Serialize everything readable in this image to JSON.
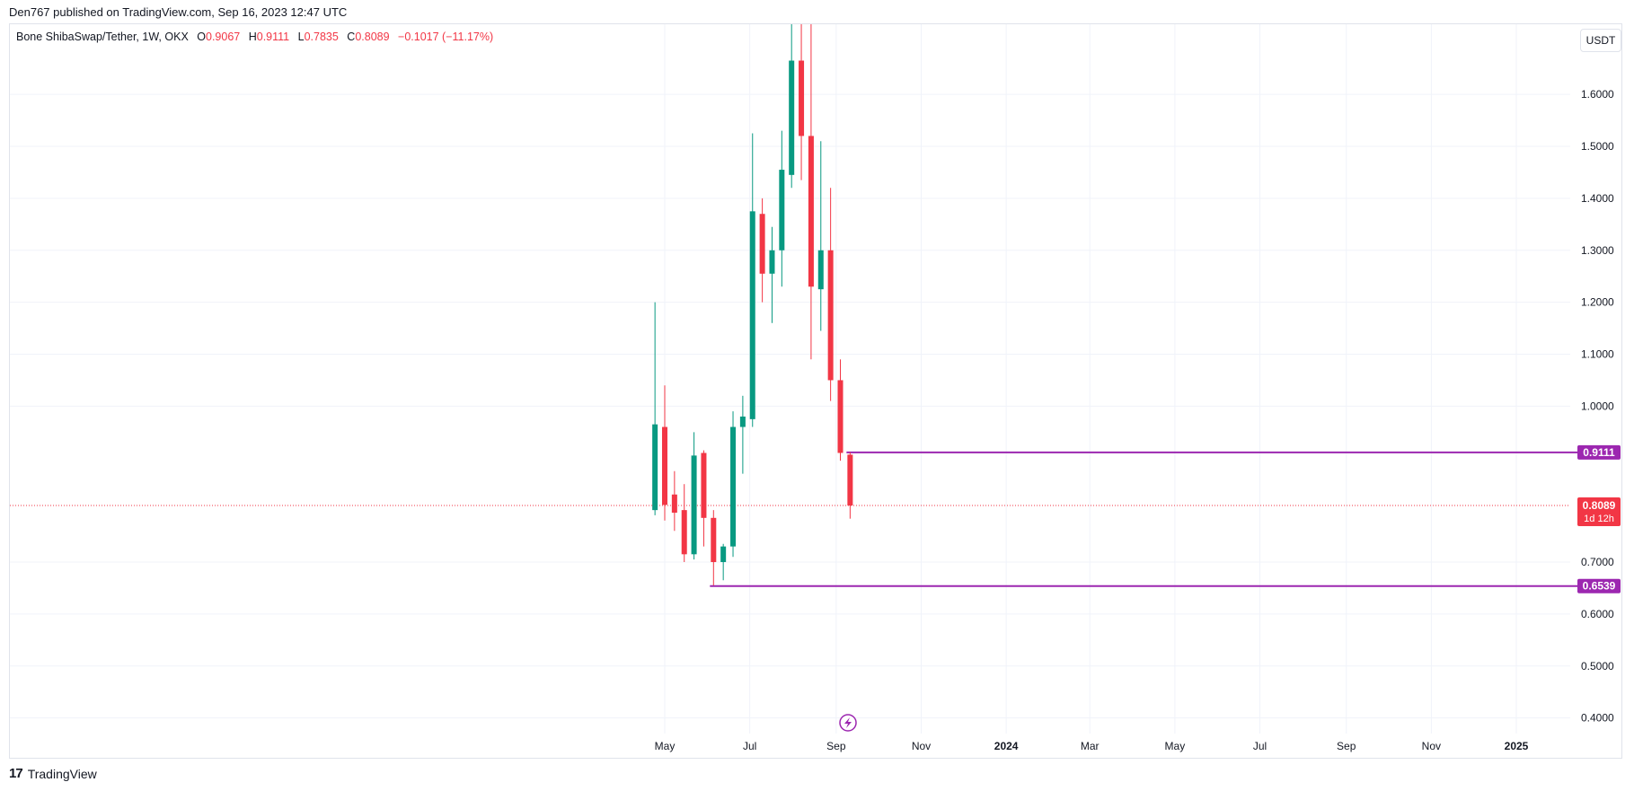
{
  "header": {
    "published": "Den767 published on TradingView.com, Sep 16, 2023 12:47 UTC"
  },
  "legend": {
    "symbol": "Bone ShibaSwap/Tether, 1W, OKX",
    "o_label": "O",
    "o": "0.9067",
    "h_label": "H",
    "h": "0.9111",
    "l_label": "L",
    "l": "0.7835",
    "c_label": "C",
    "c": "0.8089",
    "change": "−0.1017 (−11.17%)"
  },
  "currency_button": "USDT",
  "colors": {
    "up": "#089981",
    "down": "#f23645",
    "level": "#9c27b0",
    "grid": "#f0f3fa",
    "axis_text": "#131722"
  },
  "icons": {
    "lightning": "lightning-icon",
    "logo": "tradingview-logo"
  },
  "footer": {
    "brand": "TradingView"
  },
  "chart_data": {
    "type": "candlestick",
    "title": "Bone ShibaSwap/Tether, 1W, OKX",
    "ylim": [
      0.37,
      1.735
    ],
    "grid": true,
    "y_ticks": [
      "1.6000",
      "1.5000",
      "1.4000",
      "1.3000",
      "1.2000",
      "1.1000",
      "1.0000",
      "0.7000",
      "0.6000",
      "0.5000",
      "0.4000"
    ],
    "y_tick_values": [
      1.6,
      1.5,
      1.4,
      1.3,
      1.2,
      1.1,
      1.0,
      0.7,
      0.6,
      0.5,
      0.4
    ],
    "x_ticks": [
      {
        "label": "May",
        "date": "2023-05-01",
        "bold": false
      },
      {
        "label": "Jul",
        "date": "2023-07-01",
        "bold": false
      },
      {
        "label": "Sep",
        "date": "2023-09-01",
        "bold": false
      },
      {
        "label": "Nov",
        "date": "2023-11-01",
        "bold": false
      },
      {
        "label": "2024",
        "date": "2024-01-01",
        "bold": true
      },
      {
        "label": "Mar",
        "date": "2024-03-01",
        "bold": false
      },
      {
        "label": "May",
        "date": "2024-05-01",
        "bold": false
      },
      {
        "label": "Jul",
        "date": "2024-07-01",
        "bold": false
      },
      {
        "label": "Sep",
        "date": "2024-09-01",
        "bold": false
      },
      {
        "label": "Nov",
        "date": "2024-11-01",
        "bold": false
      },
      {
        "label": "2025",
        "date": "2025-01-01",
        "bold": true
      }
    ],
    "candles": [
      {
        "date": "2023-04-24",
        "o": 0.8,
        "h": 1.2,
        "l": 0.79,
        "c": 0.965
      },
      {
        "date": "2023-05-01",
        "o": 0.96,
        "h": 1.04,
        "l": 0.78,
        "c": 0.81
      },
      {
        "date": "2023-05-08",
        "o": 0.83,
        "h": 0.875,
        "l": 0.76,
        "c": 0.795
      },
      {
        "date": "2023-05-15",
        "o": 0.8,
        "h": 0.85,
        "l": 0.7,
        "c": 0.715
      },
      {
        "date": "2023-05-22",
        "o": 0.715,
        "h": 0.95,
        "l": 0.705,
        "c": 0.905
      },
      {
        "date": "2023-05-29",
        "o": 0.91,
        "h": 0.915,
        "l": 0.73,
        "c": 0.785
      },
      {
        "date": "2023-06-05",
        "o": 0.785,
        "h": 0.8,
        "l": 0.655,
        "c": 0.7
      },
      {
        "date": "2023-06-12",
        "o": 0.7,
        "h": 0.735,
        "l": 0.665,
        "c": 0.73
      },
      {
        "date": "2023-06-19",
        "o": 0.73,
        "h": 0.99,
        "l": 0.71,
        "c": 0.96
      },
      {
        "date": "2023-06-26",
        "o": 0.96,
        "h": 1.02,
        "l": 0.87,
        "c": 0.98
      },
      {
        "date": "2023-07-03",
        "o": 0.975,
        "h": 1.525,
        "l": 0.96,
        "c": 1.375
      },
      {
        "date": "2023-07-10",
        "o": 1.37,
        "h": 1.4,
        "l": 1.2,
        "c": 1.255
      },
      {
        "date": "2023-07-17",
        "o": 1.255,
        "h": 1.345,
        "l": 1.16,
        "c": 1.3
      },
      {
        "date": "2023-07-24",
        "o": 1.3,
        "h": 1.53,
        "l": 1.23,
        "c": 1.455
      },
      {
        "date": "2023-07-31",
        "o": 1.445,
        "h": 1.735,
        "l": 1.42,
        "c": 1.665
      },
      {
        "date": "2023-08-07",
        "o": 1.665,
        "h": 1.735,
        "l": 1.435,
        "c": 1.52
      },
      {
        "date": "2023-08-14",
        "o": 1.52,
        "h": 1.735,
        "l": 1.09,
        "c": 1.23
      },
      {
        "date": "2023-08-21",
        "o": 1.225,
        "h": 1.51,
        "l": 1.145,
        "c": 1.3
      },
      {
        "date": "2023-08-28",
        "o": 1.3,
        "h": 1.42,
        "l": 1.01,
        "c": 1.05
      },
      {
        "date": "2023-09-04",
        "o": 1.05,
        "h": 1.09,
        "l": 0.895,
        "c": 0.91
      },
      {
        "date": "2023-09-11",
        "o": 0.9067,
        "h": 0.9111,
        "l": 0.7835,
        "c": 0.8089
      }
    ],
    "levels": [
      {
        "value": 0.9111,
        "label": "0.9111",
        "from": "2023-09-11"
      },
      {
        "value": 0.6539,
        "label": "0.6539",
        "from": "2023-06-05"
      }
    ],
    "last_price": {
      "value": 0.8089,
      "label": "0.8089",
      "countdown": "1d 12h"
    }
  }
}
